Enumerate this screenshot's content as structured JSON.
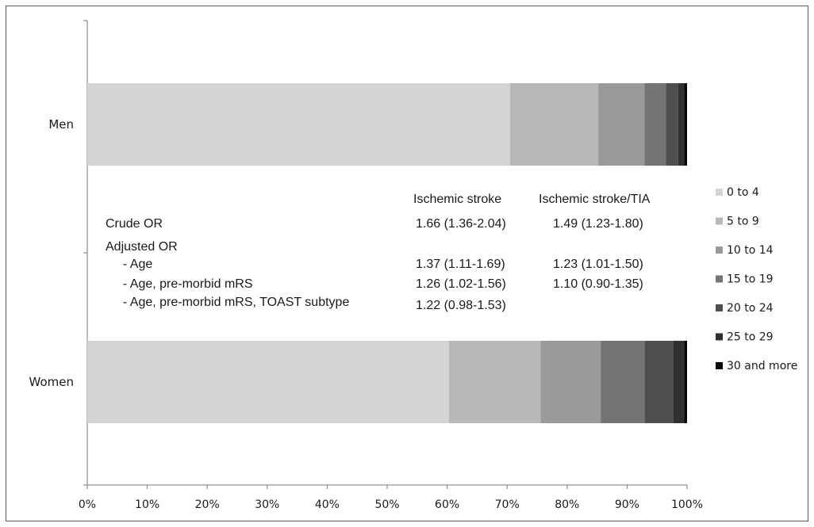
{
  "chart_data": {
    "type": "bar",
    "orientation": "horizontal",
    "stacked": "percent",
    "categories": [
      "Men",
      "Women"
    ],
    "series": [
      {
        "name": "0 to 4",
        "values": [
          70.5,
          60.3
        ],
        "color": "#d4d4d4"
      },
      {
        "name": "5 to 9",
        "values": [
          14.7,
          15.3
        ],
        "color": "#b8b8b8"
      },
      {
        "name": "10 to 14",
        "values": [
          7.7,
          10.0
        ],
        "color": "#9a9a9a"
      },
      {
        "name": "15 to 19",
        "values": [
          3.6,
          7.3
        ],
        "color": "#747474"
      },
      {
        "name": "20 to 24",
        "values": [
          2.0,
          4.8
        ],
        "color": "#4f4f4f"
      },
      {
        "name": "25 to 29",
        "values": [
          1.0,
          1.8
        ],
        "color": "#303030"
      },
      {
        "name": "30 and more",
        "values": [
          0.5,
          0.5
        ],
        "color": "#050505"
      }
    ],
    "x_ticks": [
      "0%",
      "10%",
      "20%",
      "30%",
      "40%",
      "50%",
      "60%",
      "70%",
      "80%",
      "90%",
      "100%"
    ],
    "xlim": [
      0,
      100
    ],
    "grid": false,
    "legend_position": "right"
  },
  "annotation": {
    "col1_header": "Ischemic stroke",
    "col2_header": "Ischemic stroke/TIA",
    "rows": [
      {
        "label": "Crude OR",
        "col1": "1.66 (1.36-2.04)",
        "col2": "1.49 (1.23-1.80)"
      },
      {
        "label": "Adjusted OR",
        "col1": "",
        "col2": ""
      },
      {
        "label": "  - Age",
        "col1": "1.37 (1.11-1.69)",
        "col2": "1.23 (1.01-1.50)"
      },
      {
        "label": "  - Age, pre-morbid mRS",
        "col1": "1.26 (1.02-1.56)",
        "col2": "1.10 (0.90-1.35)"
      },
      {
        "label": "  - Age, pre-morbid mRS, TOAST subtype",
        "col1": "1.22 (0.98-1.53)",
        "col2": ""
      }
    ]
  }
}
